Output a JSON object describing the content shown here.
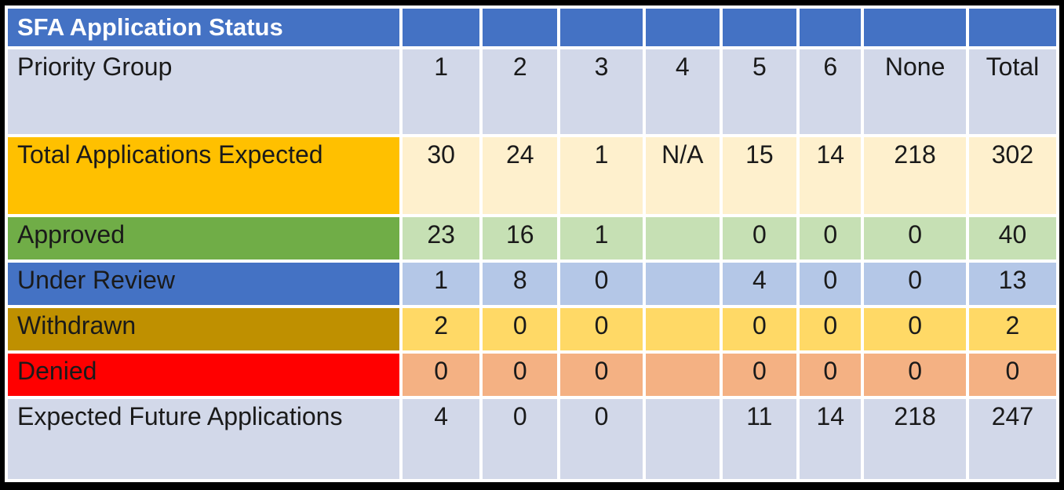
{
  "title": "SFA Application Status",
  "header": {
    "label": "Priority Group",
    "columns": [
      "1",
      "2",
      "3",
      "4",
      "5",
      "6",
      "None",
      "Total"
    ]
  },
  "rows": [
    {
      "label": "Total Applications Expected",
      "values": [
        "30",
        "24",
        "1",
        "N/A",
        "15",
        "14",
        "218",
        "302"
      ]
    },
    {
      "label": "Approved",
      "values": [
        "23",
        "16",
        "1",
        "",
        "0",
        "0",
        "0",
        "40"
      ]
    },
    {
      "label": "Under Review",
      "values": [
        "1",
        "8",
        "0",
        "",
        "4",
        "0",
        "0",
        "13"
      ]
    },
    {
      "label": "Withdrawn",
      "values": [
        "2",
        "0",
        "0",
        "",
        "0",
        "0",
        "0",
        "2"
      ]
    },
    {
      "label": "Denied",
      "values": [
        "0",
        "0",
        "0",
        "",
        "0",
        "0",
        "0",
        "0"
      ]
    },
    {
      "label": "Expected Future Applications",
      "values": [
        "4",
        "0",
        "0",
        "",
        "11",
        "14",
        "218",
        "247"
      ]
    }
  ],
  "colors": {
    "title_bar": "#4472C4",
    "header_lavender": "#D2D8E9",
    "expected_label": "#FFC000",
    "expected_data": "#FEF0CD",
    "approved_label": "#70AD47",
    "approved_data": "#C6E0B4",
    "review_label": "#4472C4",
    "review_data": "#B4C7E7",
    "withdrawn_label": "#BF9000",
    "withdrawn_data": "#FFD966",
    "denied_label": "#FF0000",
    "denied_data": "#F4B183",
    "gap": "#FFFFFF",
    "frame": "#000000"
  },
  "chart_data": {
    "type": "table",
    "title": "SFA Application Status",
    "row_header": "Priority Group",
    "categories": [
      "1",
      "2",
      "3",
      "4",
      "5",
      "6",
      "None",
      "Total"
    ],
    "series": [
      {
        "name": "Total Applications Expected",
        "values": [
          "30",
          "24",
          "1",
          "N/A",
          "15",
          "14",
          "218",
          "302"
        ]
      },
      {
        "name": "Approved",
        "values": [
          23,
          16,
          1,
          null,
          0,
          0,
          0,
          40
        ]
      },
      {
        "name": "Under Review",
        "values": [
          1,
          8,
          0,
          null,
          4,
          0,
          0,
          13
        ]
      },
      {
        "name": "Withdrawn",
        "values": [
          2,
          0,
          0,
          null,
          0,
          0,
          0,
          2
        ]
      },
      {
        "name": "Denied",
        "values": [
          0,
          0,
          0,
          null,
          0,
          0,
          0,
          0
        ]
      },
      {
        "name": "Expected Future Applications",
        "values": [
          4,
          0,
          0,
          null,
          11,
          14,
          218,
          247
        ]
      }
    ]
  }
}
